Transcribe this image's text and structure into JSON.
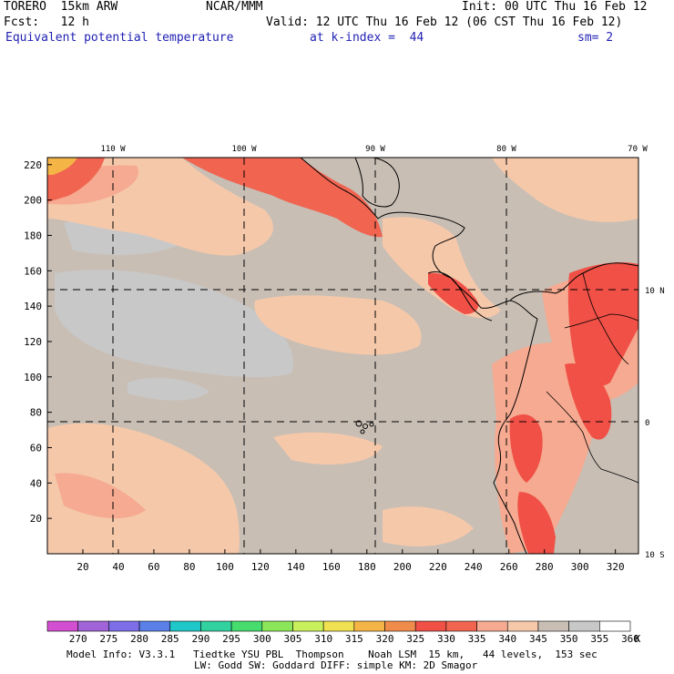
{
  "header": {
    "model": "TORERO  15km ARW",
    "center": "NCAR/MMM",
    "init": "Init: 00 UTC Thu 16 Feb 12",
    "fcst": "Fcst:   12 h",
    "valid": "Valid: 12 UTC Thu 16 Feb 12 (06 CST Thu 16 Feb 12)",
    "field": "Equivalent potential temperature",
    "level": "at k-index =  44",
    "smooth": "sm= 2"
  },
  "map": {
    "lon_labels": [
      "110 W",
      "100 W",
      "90 W",
      "80 W",
      "70 W"
    ],
    "lat_labels": [
      "10 N",
      "0",
      "10 S"
    ],
    "y_ticks": [
      "220",
      "200",
      "180",
      "160",
      "140",
      "120",
      "100",
      "80",
      "60",
      "40",
      "20"
    ],
    "x_ticks": [
      "20",
      "40",
      "60",
      "80",
      "100",
      "120",
      "140",
      "160",
      "180",
      "200",
      "220",
      "240",
      "260",
      "280",
      "300",
      "320"
    ]
  },
  "legend": {
    "values": [
      "270",
      "275",
      "280",
      "285",
      "290",
      "295",
      "300",
      "305",
      "310",
      "315",
      "320",
      "325",
      "330",
      "335",
      "340",
      "345",
      "350",
      "355",
      "360"
    ],
    "unit": "K",
    "colors": [
      "#d24fd2",
      "#a064d8",
      "#7d6ee8",
      "#5a80e8",
      "#1ec8c8",
      "#32d2a0",
      "#46dc6e",
      "#8ce65a",
      "#c8f05a",
      "#f0e150",
      "#f5b446",
      "#f08c4b",
      "#f05046",
      "#f06450",
      "#f5aa91",
      "#f5c8aa",
      "#c8beb4",
      "#c8c8c8",
      "#ffffff"
    ]
  },
  "footer": {
    "line1": "Model Info: V3.3.1   Tiedtke YSU PBL  Thompson    Noah LSM  15 km,   44 levels,  153 sec",
    "line2": "LW: Godd SW: Goddard DIFF: simple KM: 2D Smagor"
  }
}
